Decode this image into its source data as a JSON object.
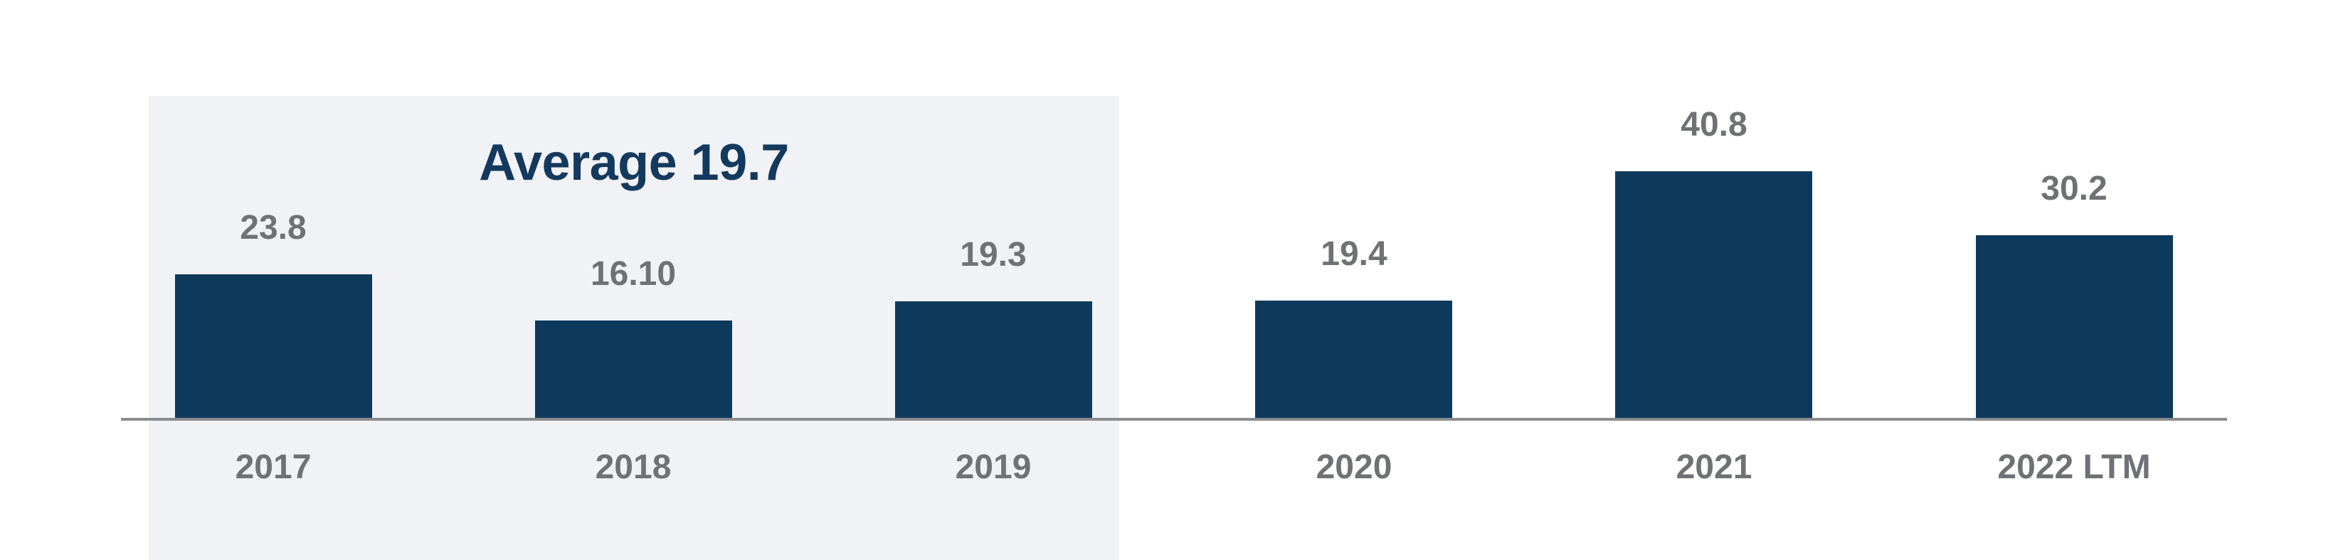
{
  "chart_data": {
    "type": "bar",
    "categories": [
      "2017",
      "2018",
      "2019",
      "2020",
      "2021",
      "2022 LTM"
    ],
    "values": [
      23.8,
      16.1,
      19.3,
      19.4,
      40.8,
      30.2
    ],
    "value_labels": [
      "23.8",
      "16.10",
      "19.3",
      "19.4",
      "40.8",
      "30.2"
    ],
    "title": "",
    "xlabel": "",
    "ylabel": "",
    "ylim": [
      0,
      45
    ],
    "grid": false,
    "legend": null,
    "annotation": {
      "text": "Average 19.7",
      "applies_to": [
        "2017",
        "2018",
        "2019"
      ]
    },
    "colors": {
      "bar": "#0d3a5c",
      "annotation_text": "#14395e",
      "highlight_band": "#f1f2f5",
      "axis_line": "#8a8b8e",
      "label_text": "#6f7175",
      "background": "#ffffff"
    }
  }
}
